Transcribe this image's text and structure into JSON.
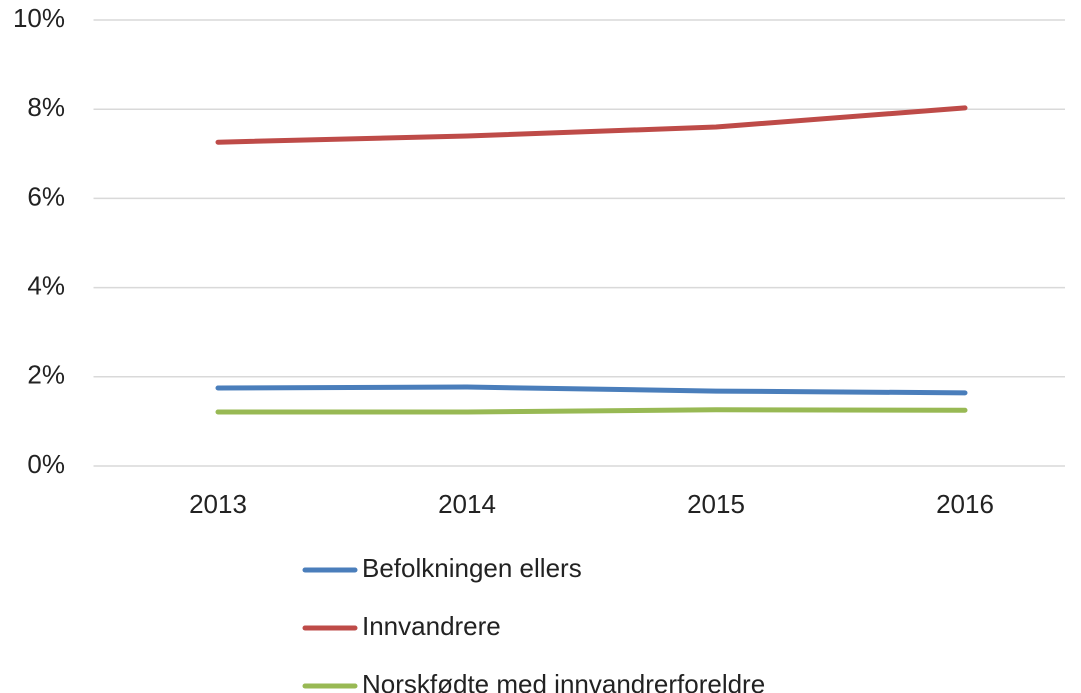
{
  "chart_data": {
    "type": "line",
    "categories": [
      "2013",
      "2014",
      "2015",
      "2016"
    ],
    "series": [
      {
        "name": "Befolkningen ellers",
        "color": "#4a7ebb",
        "values": [
          1.75,
          1.77,
          1.68,
          1.64
        ]
      },
      {
        "name": "Innvandrere",
        "color": "#be4b48",
        "values": [
          7.26,
          7.4,
          7.6,
          8.03
        ]
      },
      {
        "name": "Norskfødte med innvandrerforeldre",
        "color": "#98b954",
        "values": [
          1.21,
          1.21,
          1.26,
          1.25
        ]
      }
    ],
    "ylim": [
      0,
      10
    ],
    "yticks": [
      {
        "value": 0,
        "label": "0%"
      },
      {
        "value": 2,
        "label": "2%"
      },
      {
        "value": 4,
        "label": "4%"
      },
      {
        "value": 6,
        "label": "6%"
      },
      {
        "value": 8,
        "label": "8%"
      },
      {
        "value": 10,
        "label": "10%"
      }
    ],
    "grid": true,
    "legend": "bottom"
  }
}
